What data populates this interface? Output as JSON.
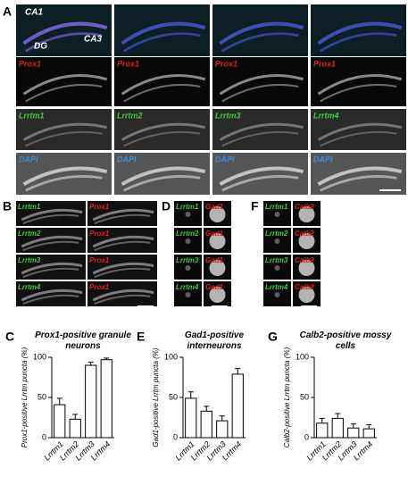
{
  "panels": {
    "A": {
      "label": "A",
      "regions": [
        "CA1",
        "DG",
        "CA3"
      ],
      "prox": "Prox1",
      "lrrtm": [
        "Lrrtm1",
        "Lrrtm2",
        "Lrrtm3",
        "Lrrtm4"
      ],
      "dapi": "DAPI"
    },
    "B": {
      "label": "B",
      "green": [
        "Lrrtm1",
        "Lrrtm2",
        "Lrrtm3",
        "Lrrtm4"
      ],
      "red": "Prox1"
    },
    "D": {
      "label": "D",
      "green": [
        "Lrrtm1",
        "Lrrtm2",
        "Lrrtm3",
        "Lrrtm4"
      ],
      "red": "Gad1"
    },
    "F": {
      "label": "F",
      "green": [
        "Lrrtm1",
        "Lrrtm2",
        "Lrrtm3",
        "Lrrtm4"
      ],
      "red": "Calb2"
    }
  },
  "chart_data": [
    {
      "type": "bar",
      "panel": "C",
      "title": "Prox1-positive granule neurons",
      "y_label": "Prox1-positive Lrrtm puncta (%)",
      "categories": [
        "Lrrtm1",
        "Lrrtm2",
        "Lrrtm3",
        "Lrrtm4"
      ],
      "values": [
        41,
        23,
        90,
        97
      ],
      "errors": [
        8,
        6,
        4,
        2
      ],
      "ylim": [
        0,
        100
      ],
      "yticks": [
        0,
        50,
        100
      ],
      "color": "#ffffff"
    },
    {
      "type": "bar",
      "panel": "E",
      "title": "Gad1-positive interneurons",
      "y_label": "Gad1-positive Lrrtm puncta (%)",
      "categories": [
        "Lrrtm1",
        "Lrrtm2",
        "Lrrtm3",
        "Lrrtm4"
      ],
      "values": [
        49,
        33,
        21,
        79
      ],
      "errors": [
        8,
        6,
        6,
        7
      ],
      "ylim": [
        0,
        100
      ],
      "yticks": [
        0,
        50,
        100
      ],
      "color": "#ffffff"
    },
    {
      "type": "bar",
      "panel": "G",
      "title": "Calb2-positive mossy cells",
      "y_label": "Calb2-positive Lrrtm puncta (%)",
      "categories": [
        "Lrrtm1",
        "Lrrtm2",
        "Lrrtm3",
        "Lrrtm4"
      ],
      "values": [
        18,
        24,
        12,
        11
      ],
      "errors": [
        6,
        6,
        5,
        5
      ],
      "ylim": [
        0,
        100
      ],
      "yticks": [
        0,
        50,
        100
      ],
      "color": "#ffffff"
    }
  ]
}
